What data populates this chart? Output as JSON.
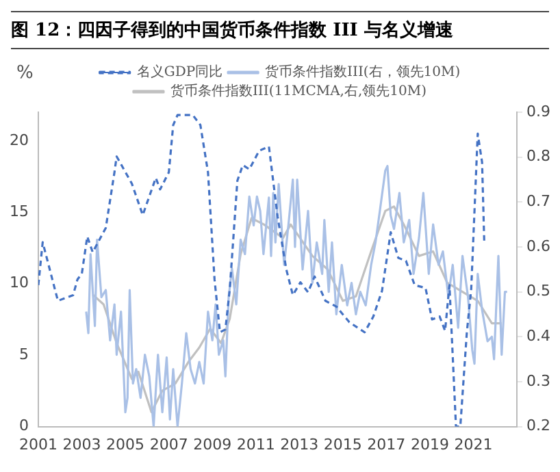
{
  "chart_data": {
    "type": "line",
    "title": "图 12：四因子得到的中国货币条件指数 III 与名义增速",
    "ylabel": "%",
    "xlim": [
      2001,
      2023
    ],
    "xticks": [
      2001,
      2003,
      2005,
      2007,
      2009,
      2011,
      2013,
      2015,
      2017,
      2019,
      2021
    ],
    "ylim": [
      0,
      22
    ],
    "yticks": [
      0,
      5,
      10,
      15,
      20
    ],
    "y2lim": [
      0.2,
      0.9
    ],
    "y2ticks": [
      0.2,
      0.3,
      0.4,
      0.5,
      0.6,
      0.7,
      0.8,
      0.9
    ],
    "grid": false,
    "legend": "top",
    "marker": "none",
    "series": [
      {
        "name": "名义GDP同比",
        "color": "#4472c4",
        "line_style": "dashed",
        "x": [
          2001.0,
          2001.2,
          2001.9,
          2002.6,
          2002.8,
          2003.0,
          2003.25,
          2003.5,
          2004.1,
          2004.5,
          2004.6,
          2005.3,
          2005.8,
          2006.4,
          2006.6,
          2007.0,
          2007.2,
          2007.4,
          2008.1,
          2008.45,
          2008.8,
          2009.1,
          2009.35,
          2009.6,
          2009.8,
          2010.15,
          2010.4,
          2010.7,
          2011.15,
          2011.6,
          2012.0,
          2012.4,
          2012.7,
          2013.05,
          2013.4,
          2013.7,
          2014.2,
          2014.7,
          2015.3,
          2016.0,
          2016.4,
          2016.8,
          2017.2,
          2017.55,
          2017.9,
          2018.3,
          2018.8,
          2019.1,
          2019.45,
          2019.7,
          2019.9,
          2020.2,
          2020.4,
          2020.7,
          2020.9,
          2021.2,
          2021.4,
          2021.5
        ],
        "values": [
          9.9,
          12.9,
          8.8,
          9.2,
          10.3,
          10.7,
          13.3,
          12.2,
          13.9,
          17.8,
          18.9,
          17.0,
          14.8,
          17.4,
          16.6,
          17.8,
          21.1,
          21.8,
          21.8,
          21.1,
          17.8,
          10.3,
          6.6,
          6.8,
          9.6,
          17.2,
          18.3,
          18.0,
          19.3,
          19.6,
          14.7,
          11.0,
          9.2,
          10.1,
          9.4,
          10.5,
          8.8,
          8.4,
          7.3,
          6.6,
          7.7,
          9.5,
          13.6,
          11.8,
          11.6,
          9.9,
          9.7,
          7.5,
          7.7,
          6.7,
          9.9,
          0,
          0,
          6.6,
          9.6,
          20.5,
          18.5,
          12.9
        ]
      },
      {
        "name": "货币条件指数III(右，领先10M)",
        "color": "#a9c0e6",
        "axis": "y2",
        "line_style": "solid",
        "x": [
          2003.2,
          2003.3,
          2003.4,
          2003.6,
          2003.7,
          2003.9,
          2004.1,
          2004.3,
          2004.5,
          2004.6,
          2004.8,
          2005.0,
          2005.1,
          2005.2,
          2005.35,
          2005.5,
          2005.7,
          2005.9,
          2006.1,
          2006.3,
          2006.5,
          2006.7,
          2006.9,
          2007.05,
          2007.2,
          2007.4,
          2007.6,
          2007.8,
          2008.0,
          2008.2,
          2008.4,
          2008.6,
          2008.8,
          2009.0,
          2009.15,
          2009.3,
          2009.5,
          2009.6,
          2009.75,
          2009.9,
          2010.1,
          2010.3,
          2010.5,
          2010.7,
          2010.9,
          2011.05,
          2011.2,
          2011.35,
          2011.6,
          2011.7,
          2011.8,
          2011.9,
          2012.05,
          2012.3,
          2012.5,
          2012.7,
          2012.8,
          2012.9,
          2013.15,
          2013.4,
          2013.6,
          2013.8,
          2014.05,
          2014.15,
          2014.35,
          2014.5,
          2014.7,
          2014.95,
          2015.2,
          2015.4,
          2015.6,
          2015.8,
          2016.05,
          2016.3,
          2016.5,
          2016.7,
          2016.95,
          2017.05,
          2017.2,
          2017.35,
          2017.6,
          2017.8,
          2018.05,
          2018.25,
          2018.5,
          2018.7,
          2018.95,
          2019.15,
          2019.4,
          2019.6,
          2019.85,
          2020.05,
          2020.3,
          2020.5,
          2020.75,
          2020.95,
          2021.05,
          2021.2,
          2021.4,
          2021.65,
          2021.85,
          2021.95,
          2022.15,
          2022.3,
          2022.45,
          2022.55
        ],
        "values": [
          0.456,
          0.408,
          0.584,
          0.424,
          0.616,
          0.488,
          0.504,
          0.392,
          0.472,
          0.36,
          0.456,
          0.232,
          0.264,
          0.504,
          0.296,
          0.328,
          0.264,
          0.36,
          0.312,
          0.2,
          0.36,
          0.232,
          0.354,
          0.216,
          0.328,
          0.2,
          0.296,
          0.408,
          0.328,
          0.296,
          0.344,
          0.296,
          0.456,
          0.392,
          0.472,
          0.36,
          0.392,
          0.312,
          0.488,
          0.552,
          0.472,
          0.616,
          0.584,
          0.712,
          0.648,
          0.712,
          0.68,
          0.584,
          0.71,
          0.58,
          0.72,
          0.61,
          0.74,
          0.56,
          0.65,
          0.75,
          0.6,
          0.75,
          0.55,
          0.68,
          0.52,
          0.61,
          0.54,
          0.66,
          0.5,
          0.61,
          0.45,
          0.56,
          0.47,
          0.52,
          0.45,
          0.5,
          0.47,
          0.56,
          0.61,
          0.68,
          0.77,
          0.78,
          0.67,
          0.64,
          0.72,
          0.61,
          0.66,
          0.54,
          0.62,
          0.72,
          0.54,
          0.65,
          0.56,
          0.59,
          0.49,
          0.56,
          0.42,
          0.58,
          0.49,
          0.37,
          0.34,
          0.54,
          0.46,
          0.39,
          0.4,
          0.35,
          0.58,
          0.36,
          0.5,
          0.5
        ]
      },
      {
        "name": "货币条件指数III(11MCMA,右,领先10M)",
        "color": "#c0c0c0",
        "axis": "y2",
        "line_style": "solid",
        "x": [
          2003.5,
          2004.0,
          2004.6,
          2005.3,
          2005.6,
          2006.2,
          2006.7,
          2007.3,
          2007.9,
          2008.4,
          2008.9,
          2009.4,
          2009.8,
          2010.3,
          2010.8,
          2011.37,
          2012.25,
          2012.6,
          2013.6,
          2014.3,
          2015.0,
          2015.6,
          2016.3,
          2016.95,
          2017.35,
          2017.8,
          2018.5,
          2019.15,
          2019.8,
          2020.5,
          2021.2,
          2021.85,
          2022.3
        ],
        "values": [
          0.494,
          0.472,
          0.386,
          0.306,
          0.322,
          0.232,
          0.28,
          0.296,
          0.344,
          0.376,
          0.418,
          0.386,
          0.44,
          0.584,
          0.664,
          0.65,
          0.62,
          0.65,
          0.58,
          0.55,
          0.48,
          0.49,
          0.59,
          0.68,
          0.69,
          0.65,
          0.58,
          0.59,
          0.52,
          0.5,
          0.48,
          0.43,
          0.43
        ]
      }
    ]
  }
}
